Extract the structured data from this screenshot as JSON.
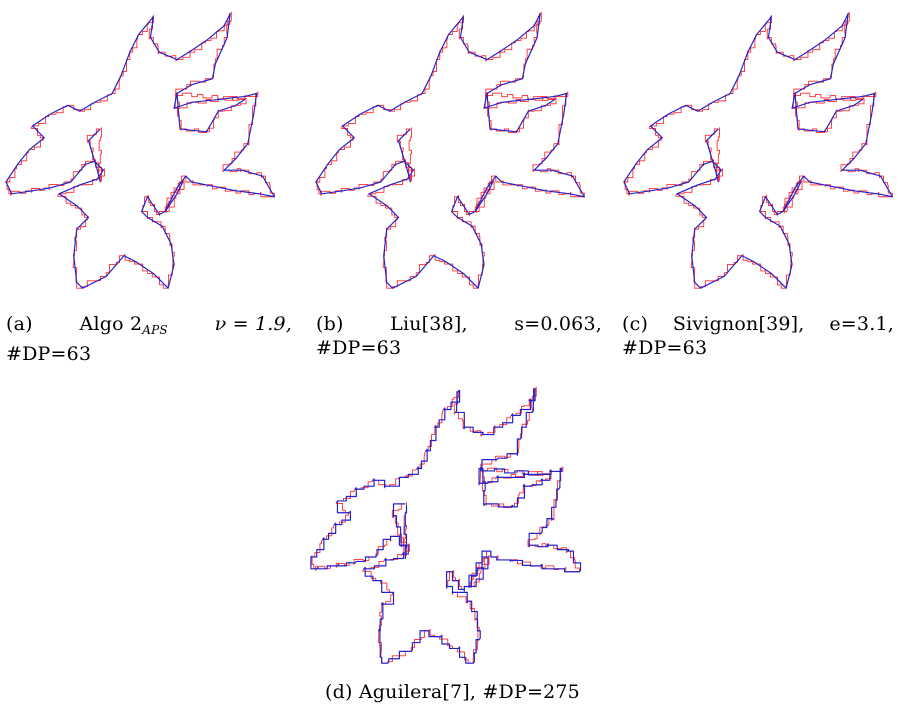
{
  "figure": {
    "subfigures": [
      {
        "id": "a",
        "caption_tag": "(a)",
        "caption_method": "Algo 2",
        "caption_subscript": "APS",
        "caption_param": "ν = 1.9,",
        "caption_dp": "#DP=63"
      },
      {
        "id": "b",
        "caption_tag": "(b)",
        "caption_method": "Liu[38],",
        "caption_param": "s=0.063,",
        "caption_dp": "#DP=63"
      },
      {
        "id": "c",
        "caption_tag": "(c)",
        "caption_method": "Sivignon[39],",
        "caption_param": "e=3.1,",
        "caption_dp": "#DP=63"
      },
      {
        "id": "d",
        "caption_tag": "(d)",
        "caption_method": "Aguilera[7],",
        "caption_dp": "#DP=275"
      }
    ],
    "colors": {
      "digital_contour": "#ff2a2a",
      "polygonal_approximation": "#2222cc"
    }
  }
}
